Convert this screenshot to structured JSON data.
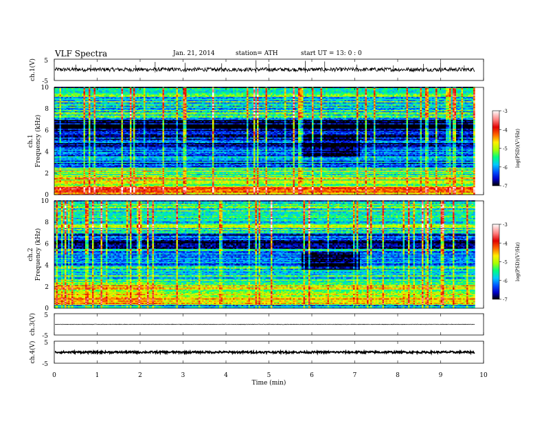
{
  "header": {
    "title": "VLF  Spectra",
    "date": "Jan. 21, 2014",
    "station": "station= ATH",
    "start": "start  UT  =    13: 0   : 0"
  },
  "chart_data": [
    {
      "type": "line",
      "name": "ch1-waveform",
      "ylabel": "ch.1(V)",
      "ylim": [
        -5,
        5
      ],
      "yticks": [
        "5",
        "-5"
      ],
      "xlim": [
        0,
        10
      ],
      "baseline": 0.15,
      "noise_amplitude": 0.9,
      "spike_times": [
        0.5,
        0.85,
        1.9,
        2.35,
        3.05,
        3.9,
        4.7,
        5.0,
        5.85,
        6.3,
        7.05,
        7.9,
        8.6,
        9.0,
        9.55
      ]
    },
    {
      "type": "heatmap",
      "name": "ch1-spectrogram",
      "ylabel": "ch.1 Frequency (kHz)",
      "ylim": [
        0,
        10
      ],
      "yticks": [
        "0",
        "2",
        "4",
        "6",
        "8",
        "10"
      ],
      "xlim": [
        0,
        10
      ],
      "data_xmax": 9.8,
      "colorbar": {
        "label": "log(PSD)(V²/Hz)",
        "range": [
          -7,
          -3
        ],
        "ticks": [
          "-3",
          "-4",
          "-5",
          "-6",
          "-7"
        ],
        "colors": [
          "#000000",
          "#0000c8",
          "#0050ff",
          "#00c8ff",
          "#00ff80",
          "#aaff00",
          "#ffee00",
          "#ff6600",
          "#e00000",
          "#ff8080",
          "#ffe0e0",
          "#ffffff"
        ]
      },
      "bands": [
        {
          "fmin": 0.0,
          "fmax": 0.35,
          "level": -4.6
        },
        {
          "fmin": 0.35,
          "fmax": 0.75,
          "level": -4.0
        },
        {
          "fmin": 0.75,
          "fmax": 1.6,
          "level": -5.0
        },
        {
          "fmin": 1.6,
          "fmax": 2.5,
          "level": -5.3
        },
        {
          "fmin": 2.5,
          "fmax": 4.2,
          "level": -6.2
        },
        {
          "fmin": 4.2,
          "fmax": 5.5,
          "level": -6.5
        },
        {
          "fmin": 5.5,
          "fmax": 7.0,
          "level": -6.8
        },
        {
          "fmin": 7.0,
          "fmax": 10.0,
          "level": -5.6
        }
      ],
      "quiet_region": {
        "tmin": 5.75,
        "tmax": 7.1,
        "fmin": 3.5,
        "fmax": 5.5,
        "level": -7.0
      }
    },
    {
      "type": "heatmap",
      "name": "ch2-spectrogram",
      "ylabel": "ch.2 Frequency (kHz)",
      "ylim": [
        0,
        10
      ],
      "yticks": [
        "0",
        "2",
        "4",
        "6",
        "8",
        "10"
      ],
      "xlim": [
        0,
        10
      ],
      "data_xmax": 9.8,
      "colorbar": {
        "label": "log(PSD)(V²/Hz)",
        "range": [
          -7,
          -3
        ],
        "ticks": [
          "-3",
          "-4",
          "-5",
          "-6",
          "-7"
        ]
      },
      "bands": [
        {
          "fmin": 0.0,
          "fmax": 0.3,
          "level": -6.0
        },
        {
          "fmin": 0.3,
          "fmax": 1.2,
          "level": -4.7
        },
        {
          "fmin": 1.2,
          "fmax": 2.4,
          "level": -4.9
        },
        {
          "fmin": 2.4,
          "fmax": 4.0,
          "level": -5.6
        },
        {
          "fmin": 4.0,
          "fmax": 5.5,
          "level": -6.1
        },
        {
          "fmin": 5.5,
          "fmax": 7.0,
          "level": -6.6
        },
        {
          "fmin": 7.0,
          "fmax": 10.0,
          "level": -5.5
        }
      ],
      "quiet_region": {
        "tmin": 5.75,
        "tmax": 7.1,
        "fmin": 3.6,
        "fmax": 5.2,
        "level": -6.9
      }
    },
    {
      "type": "line",
      "name": "ch3-waveform",
      "ylabel": "ch.3(V)",
      "ylim": [
        -5,
        5
      ],
      "yticks": [
        "5",
        "-5"
      ],
      "xlim": [
        0,
        10
      ],
      "baseline": 0.0,
      "noise_amplitude": 0.12
    },
    {
      "type": "line",
      "name": "ch4-waveform",
      "ylabel": "ch.4(V)",
      "ylim": [
        -5,
        5
      ],
      "yticks": [
        "5",
        "-5"
      ],
      "xlim": [
        0,
        10
      ],
      "baseline": 0.0,
      "noise_amplitude": 0.45
    }
  ],
  "xaxis": {
    "label": "Time  (min)",
    "ticks": [
      "0",
      "1",
      "2",
      "3",
      "4",
      "5",
      "6",
      "7",
      "8",
      "9",
      "10"
    ]
  }
}
